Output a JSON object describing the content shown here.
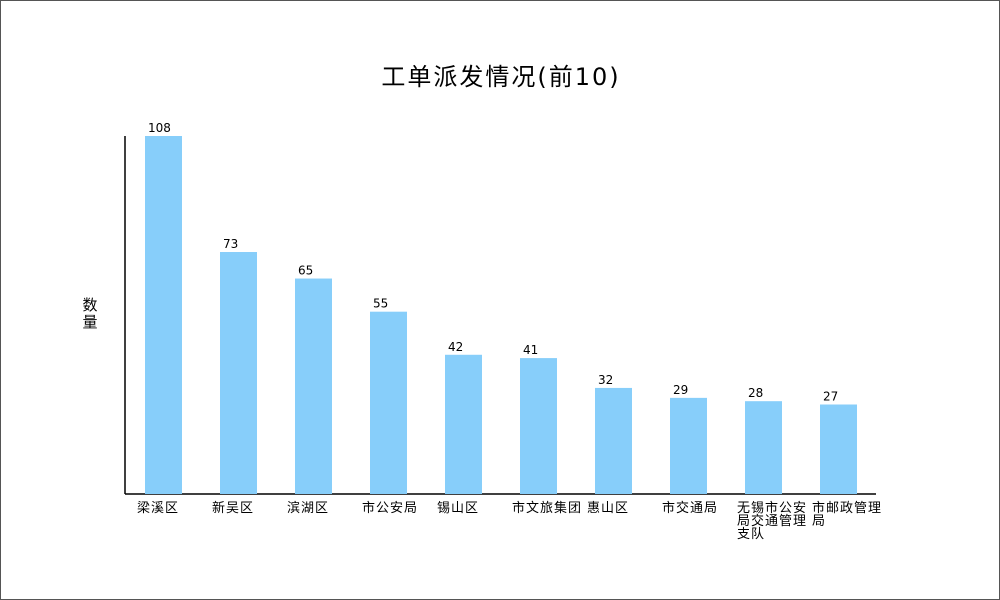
{
  "chart_data": {
    "type": "bar",
    "title": "工单派发情况(前10)",
    "xlabel": "",
    "ylabel": "数量",
    "categories": [
      "梁溪区",
      "新吴区",
      "滨湖区",
      "市公安局",
      "锡山区",
      "市文旅集团",
      "惠山区",
      "市交通局",
      "无锡市公安局交通管理支队",
      "市邮政管理局"
    ],
    "values": [
      108,
      73,
      65,
      55,
      42,
      41,
      32,
      29,
      28,
      27
    ],
    "ylim": [
      0,
      108
    ],
    "grid": false,
    "legend": "none",
    "bar_color": "#87CEFA"
  }
}
